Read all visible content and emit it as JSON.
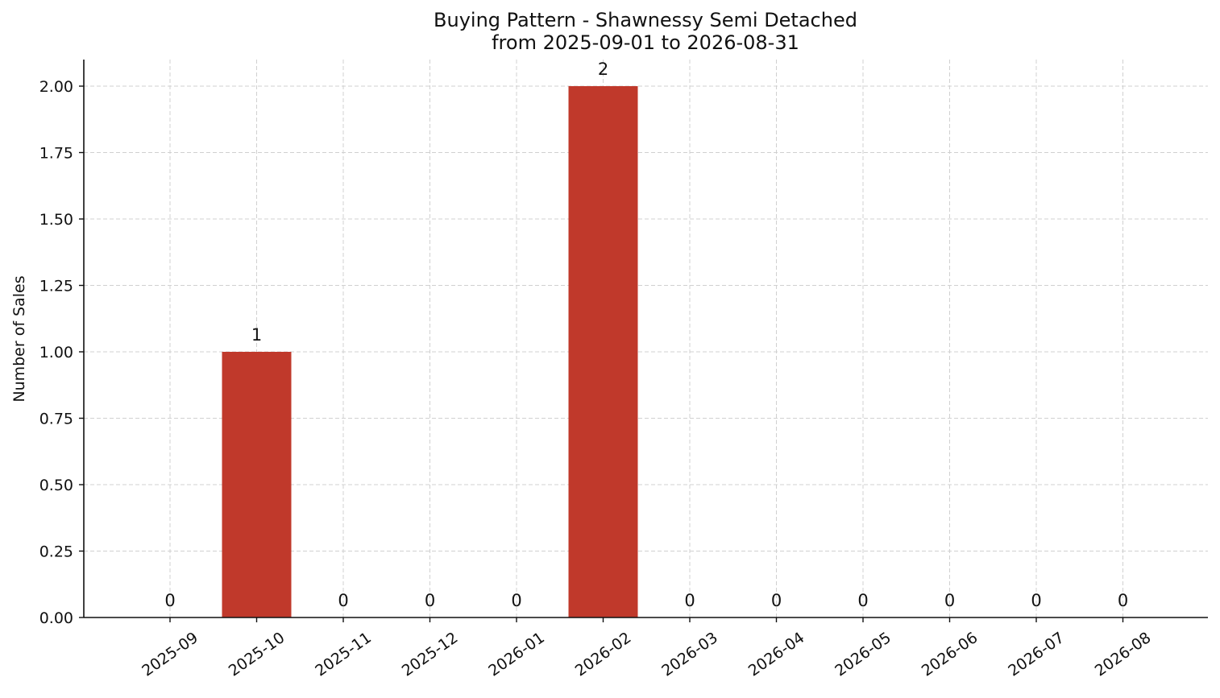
{
  "chart_data": {
    "type": "bar",
    "title": "Buying Pattern - Shawnessy Semi Detached",
    "subtitle": "from 2025-09-01 to 2026-08-31",
    "xlabel": "",
    "ylabel": "Number of Sales",
    "categories": [
      "2025-09",
      "2025-10",
      "2025-11",
      "2025-12",
      "2026-01",
      "2026-02",
      "2026-03",
      "2026-04",
      "2026-05",
      "2026-06",
      "2026-07",
      "2026-08"
    ],
    "values": [
      0,
      1,
      0,
      0,
      0,
      2,
      0,
      0,
      0,
      0,
      0,
      0
    ],
    "data_labels": [
      "0",
      "1",
      "0",
      "0",
      "0",
      "2",
      "0",
      "0",
      "0",
      "0",
      "0",
      "0"
    ],
    "ylim": [
      0,
      2.1
    ],
    "yticks": [
      0,
      0.25,
      0.5,
      0.75,
      1.0,
      1.25,
      1.5,
      1.75,
      2.0
    ],
    "ytick_labels": [
      "0.00",
      "0.25",
      "0.50",
      "0.75",
      "1.00",
      "1.25",
      "1.50",
      "1.75",
      "2.00"
    ],
    "bar_color": "#c0392b",
    "grid": true,
    "legend": "none"
  }
}
